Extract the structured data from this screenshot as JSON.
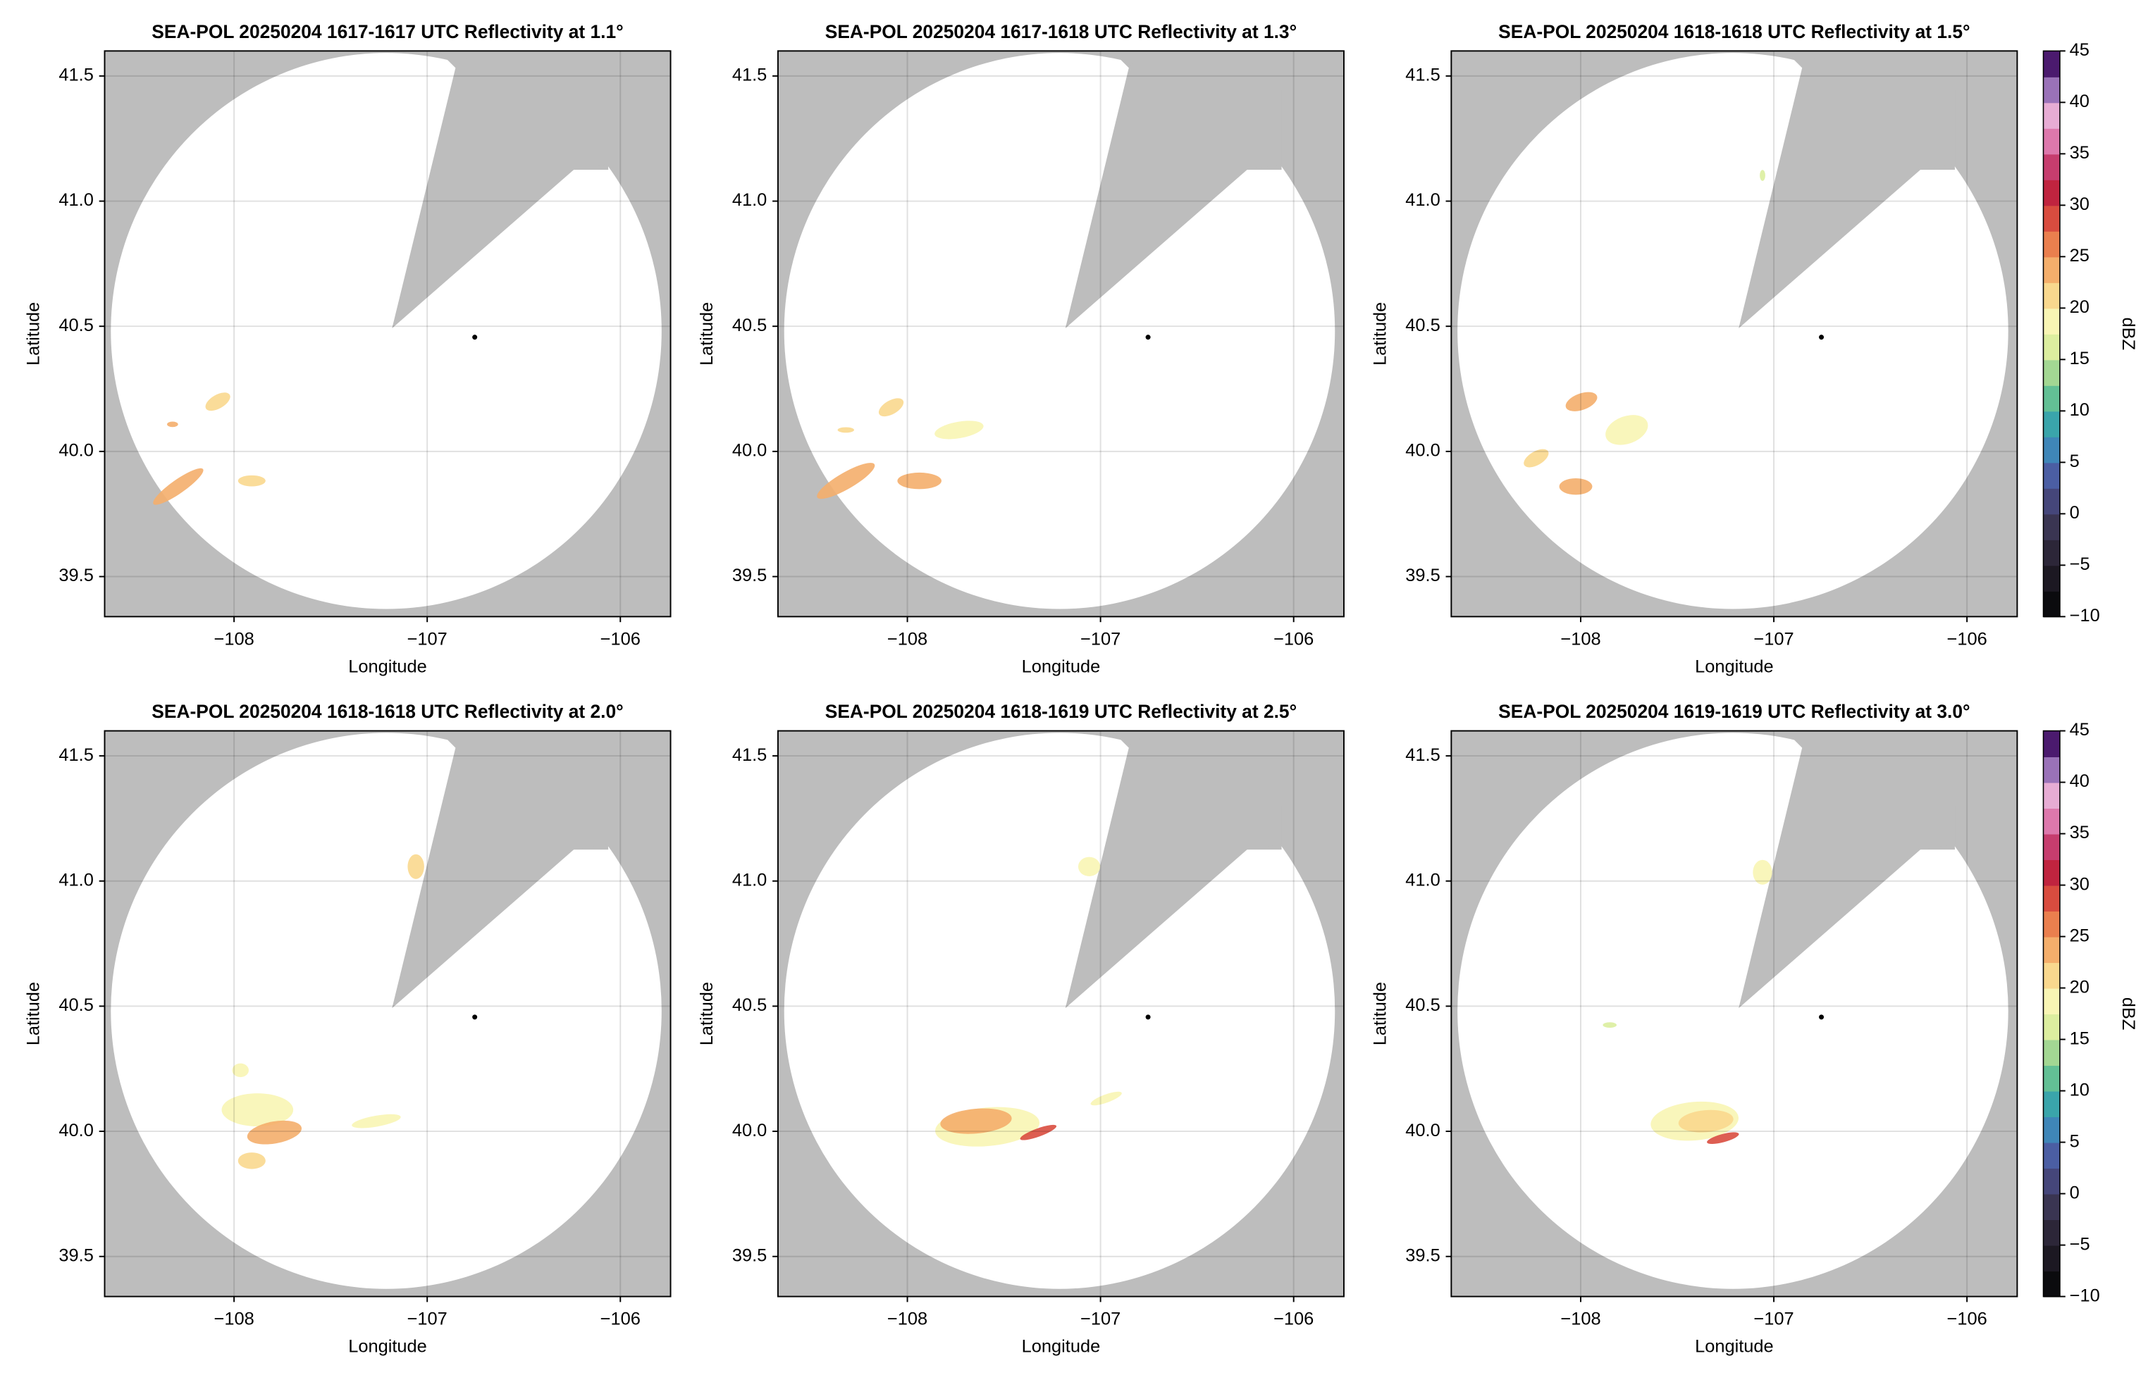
{
  "chart_data": [
    {
      "type": "radar",
      "title": "SEA-POL 20250204 1617-1617 UTC Reflectivity at 1.1°",
      "xlabel": "Longitude",
      "ylabel": "Latitude",
      "xlim": [
        -108.67,
        -105.74
      ],
      "ylim": [
        39.34,
        41.6
      ],
      "xticks": [
        {
          "value": -108,
          "label": "−108"
        },
        {
          "value": -107,
          "label": "−107"
        },
        {
          "value": -106,
          "label": "−106"
        }
      ],
      "yticks": [
        39.5,
        {
          "value": 40.0,
          "label": "40.0"
        },
        40.5,
        {
          "value": 41.0,
          "label": "41.0"
        },
        41.5
      ],
      "grid": true
    },
    {
      "type": "radar",
      "title": "SEA-POL 20250204 1617-1618 UTC Reflectivity at 1.3°",
      "xlabel": "Longitude",
      "ylabel": "Latitude",
      "xlim": [
        -108.67,
        -105.74
      ],
      "ylim": [
        39.34,
        41.6
      ],
      "xticks": [
        {
          "value": -108,
          "label": "−108"
        },
        {
          "value": -107,
          "label": "−107"
        },
        {
          "value": -106,
          "label": "−106"
        }
      ],
      "yticks": [
        39.5,
        {
          "value": 40.0,
          "label": "40.0"
        },
        40.5,
        {
          "value": 41.0,
          "label": "41.0"
        },
        41.5
      ],
      "grid": true
    },
    {
      "type": "radar",
      "title": "SEA-POL 20250204 1618-1618 UTC Reflectivity at 1.5°",
      "xlabel": "Longitude",
      "ylabel": "Latitude",
      "xlim": [
        -108.67,
        -105.74
      ],
      "ylim": [
        39.34,
        41.6
      ],
      "xticks": [
        {
          "value": -108,
          "label": "−108"
        },
        {
          "value": -107,
          "label": "−107"
        },
        {
          "value": -106,
          "label": "−106"
        }
      ],
      "yticks": [
        39.5,
        {
          "value": 40.0,
          "label": "40.0"
        },
        40.5,
        {
          "value": 41.0,
          "label": "41.0"
        },
        41.5
      ],
      "grid": true,
      "colorbar": {
        "label": "dBZ",
        "lim": [
          -10,
          45
        ],
        "ticks": [
          {
            "value": -10,
            "label": "−10"
          },
          {
            "value": -5,
            "label": "−5"
          },
          0,
          5,
          10,
          15,
          20,
          25,
          30,
          35,
          40,
          45
        ],
        "colors": [
          "#0b0b0e",
          "#1c1822",
          "#2c2638",
          "#3a3552",
          "#45467a",
          "#4b5ea3",
          "#3f86b8",
          "#3aa5ab",
          "#63c095",
          "#a3d793",
          "#dcee9f",
          "#f8f5b4",
          "#f9d88e",
          "#f4ae6b",
          "#ea7f4e",
          "#d94c3f",
          "#c0243f",
          "#c63d6e",
          "#dd78ac",
          "#e7acd4",
          "#9a72b8",
          "#4b1a6e"
        ]
      }
    },
    {
      "type": "radar",
      "title": "SEA-POL 20250204 1618-1618 UTC Reflectivity at 2.0°",
      "xlabel": "Longitude",
      "ylabel": "Latitude",
      "xlim": [
        -108.67,
        -105.74
      ],
      "ylim": [
        39.34,
        41.6
      ],
      "xticks": [
        {
          "value": -108,
          "label": "−108"
        },
        {
          "value": -107,
          "label": "−107"
        },
        {
          "value": -106,
          "label": "−106"
        }
      ],
      "yticks": [
        39.5,
        {
          "value": 40.0,
          "label": "40.0"
        },
        40.5,
        {
          "value": 41.0,
          "label": "41.0"
        },
        41.5
      ],
      "grid": true
    },
    {
      "type": "radar",
      "title": "SEA-POL 20250204 1618-1619 UTC Reflectivity at 2.5°",
      "xlabel": "Longitude",
      "ylabel": "Latitude",
      "xlim": [
        -108.67,
        -105.74
      ],
      "ylim": [
        39.34,
        41.6
      ],
      "xticks": [
        {
          "value": -108,
          "label": "−108"
        },
        {
          "value": -107,
          "label": "−107"
        },
        {
          "value": -106,
          "label": "−106"
        }
      ],
      "yticks": [
        39.5,
        {
          "value": 40.0,
          "label": "40.0"
        },
        40.5,
        {
          "value": 41.0,
          "label": "41.0"
        },
        41.5
      ],
      "grid": true
    },
    {
      "type": "radar",
      "title": "SEA-POL 20250204 1619-1619 UTC Reflectivity at 3.0°",
      "xlabel": "Longitude",
      "ylabel": "Latitude",
      "xlim": [
        -108.67,
        -105.74
      ],
      "ylim": [
        39.34,
        41.6
      ],
      "xticks": [
        {
          "value": -108,
          "label": "−108"
        },
        {
          "value": -107,
          "label": "−107"
        },
        {
          "value": -106,
          "label": "−106"
        }
      ],
      "yticks": [
        39.5,
        {
          "value": 40.0,
          "label": "40.0"
        },
        40.5,
        {
          "value": 41.0,
          "label": "41.0"
        },
        41.5
      ],
      "grid": true,
      "colorbar": {
        "label": "dBZ",
        "lim": [
          -10,
          45
        ],
        "ticks": [
          {
            "value": -10,
            "label": "−10"
          },
          {
            "value": -5,
            "label": "−5"
          },
          0,
          5,
          10,
          15,
          20,
          25,
          30,
          35,
          40,
          45
        ],
        "colors": [
          "#0b0b0e",
          "#1c1822",
          "#2c2638",
          "#3a3552",
          "#45467a",
          "#4b5ea3",
          "#3f86b8",
          "#3aa5ab",
          "#63c095",
          "#a3d793",
          "#dcee9f",
          "#f8f5b4",
          "#f9d88e",
          "#f4ae6b",
          "#ea7f4e",
          "#d94c3f",
          "#c0243f",
          "#c63d6e",
          "#dd78ac",
          "#e7acd4",
          "#9a72b8",
          "#4b1a6e"
        ]
      }
    }
  ]
}
